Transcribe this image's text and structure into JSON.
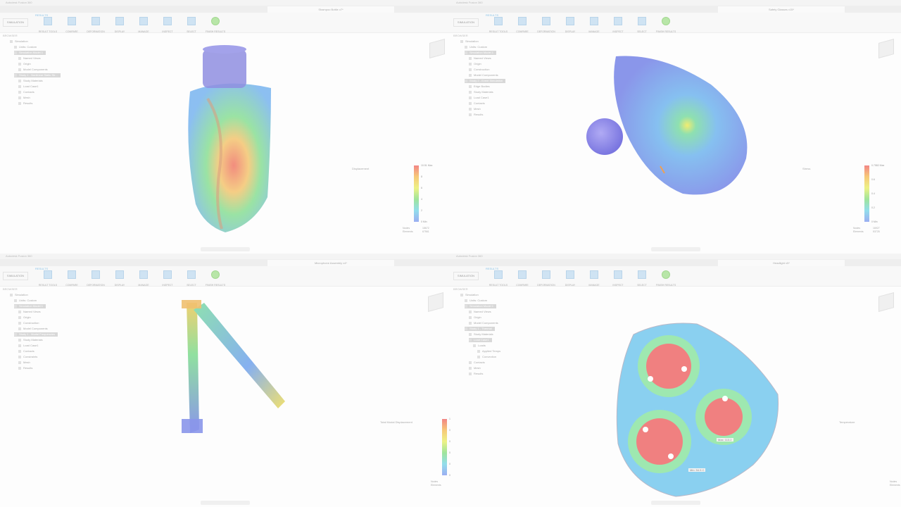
{
  "panels": [
    {
      "window_title": "Autodesk Fusion 360",
      "doc_tab": "Shampoo Bottle v7*",
      "workspace": "SIMULATION",
      "tab": "RESULTS",
      "toolbar": [
        "RESULT TOOLS",
        "COMPARE",
        "DEFORMATION",
        "DISPLAY",
        "MANAGE",
        "INSPECT",
        "SELECT",
        "FINISH RESULTS"
      ],
      "browser_title": "BROWSER",
      "tree": [
        "Simulation",
        "Units: Custom",
        "Simulation Model 1",
        "Named Views",
        "Origin",
        "Model Components",
        "Study 1 - Nonlinear Static Str...",
        "Study Materials",
        "Load Case1",
        "Contacts",
        "Mesh",
        "Results"
      ],
      "legend": {
        "title": "Displacement",
        "ticks": [
          "10.51 Max",
          "8",
          "6",
          "4",
          "2",
          "0 Min"
        ],
        "nodes_label": "Nodes",
        "nodes": "18672",
        "elements_label": "Elements",
        "elements": "67561"
      },
      "annotations": []
    },
    {
      "window_title": "Autodesk Fusion 360",
      "doc_tab": "Safety Glasses v15*",
      "workspace": "SIMULATION",
      "tab": "RESULTS",
      "toolbar": [
        "RESULT TOOLS",
        "COMPARE",
        "DEFORMATION",
        "DISPLAY",
        "MANAGE",
        "INSPECT",
        "SELECT",
        "FINISH RESULTS"
      ],
      "browser_title": "BROWSER",
      "tree": [
        "Simulation",
        "Units: Custom",
        "Simulation Model 1",
        "Named Views",
        "Origin",
        "Construction",
        "Model Components",
        "Study 2 - Event Simulation",
        "Edge Bodies",
        "Study Materials",
        "Load Case1",
        "Contacts",
        "Mesh",
        "Results"
      ],
      "legend": {
        "title": "Stress",
        "ticks": [
          "0.7582 Max",
          "0.6",
          "0.4",
          "0.2",
          "0 Min"
        ],
        "nodes_label": "Nodes",
        "nodes": "16927",
        "elements_label": "Elements",
        "elements": "53725"
      },
      "annotations": []
    },
    {
      "window_title": "Autodesk Fusion 360",
      "doc_tab": "Microphone Assembly v4*",
      "workspace": "SIMULATION",
      "tab": "RESULTS",
      "toolbar": [
        "RESULT TOOLS",
        "COMPARE",
        "DEFORMATION",
        "DISPLAY",
        "MANAGE",
        "INSPECT",
        "SELECT",
        "FINISH RESULTS"
      ],
      "browser_title": "BROWSER",
      "tree": [
        "Simulation",
        "Units: Custom",
        "Simulation Model 1",
        "Named Views",
        "Origin",
        "Construction",
        "Model Components",
        "Study 1 - Modal Frequencies",
        "Study Materials",
        "Load Case1",
        "Contacts",
        "Constraints",
        "Mesh",
        "Results"
      ],
      "legend": {
        "title": "Total Modal Displacement",
        "ticks": [
          "1 Max",
          "0.8",
          "0.6",
          "0.4",
          "0.2",
          "0 Min"
        ],
        "nodes_label": "Nodes",
        "nodes": "136779",
        "elements_label": "Elements",
        "elements": "71964"
      },
      "annotations": []
    },
    {
      "window_title": "Autodesk Fusion 360",
      "doc_tab": "Headlight v5*",
      "workspace": "SIMULATION",
      "tab": "RESULTS",
      "toolbar": [
        "RESULT TOOLS",
        "COMPARE",
        "DEFORMATION",
        "DISPLAY",
        "MANAGE",
        "INSPECT",
        "SELECT",
        "FINISH RESULTS"
      ],
      "browser_title": "BROWSER",
      "tree": [
        "Simulation",
        "Units: Custom",
        "Simulation Model 1",
        "Named Views",
        "Origin",
        "Model Components",
        "Study 1 - Thermal",
        "Study Materials",
        "Load Case1",
        "Loads",
        "Applied Temps",
        "Convection",
        "Contacts",
        "Mesh",
        "Results"
      ],
      "legend": {
        "title": "Temperature",
        "ticks": [
          "113 Max",
          "95",
          "75",
          "60",
          "54.5 Min"
        ],
        "nodes_label": "Nodes",
        "nodes": "303717",
        "elements_label": "Elements",
        "elements": "189395"
      },
      "annotations": [
        "Max: 113.2",
        "Min: 54.5 C"
      ]
    }
  ]
}
